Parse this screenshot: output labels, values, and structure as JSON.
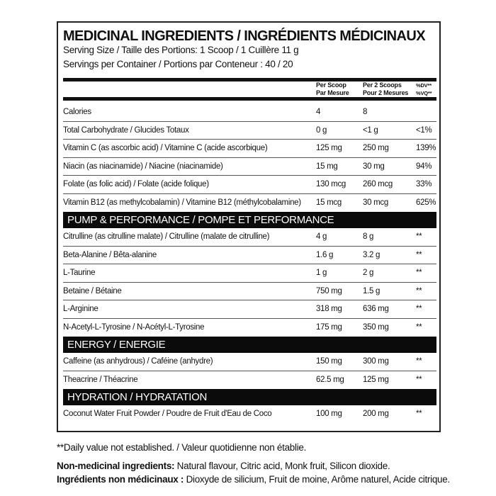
{
  "title": "MEDICINAL INGREDIENTS / INGRÉDIENTS MÉDICINAUX",
  "serving_size": "Serving Size / Taille des Portions: 1 Scoop / 1 Cuillère 11 g",
  "servings_per_container": "Servings per Container / Portions par Conteneur : 40 / 20",
  "columns": {
    "per_scoop": [
      "Per Scoop",
      "Par Mesure"
    ],
    "per_2_scoops": [
      "Per 2 Scoops",
      "Pour 2 Mesures"
    ],
    "dv": [
      "%DV**",
      "%VQ**"
    ]
  },
  "rows": [
    [
      "Calories",
      "4",
      "8",
      ""
    ],
    [
      "Total Carbohydrate / Glucides Totaux",
      "0 g",
      "<1 g",
      "<1%"
    ],
    [
      "Vitamin C (as ascorbic acid) / Vitamine C (acide ascorbique)",
      "125 mg",
      "250 mg",
      "139%"
    ],
    [
      "Niacin (as niacinamide) / Niacine (niacinamide)",
      "15 mg",
      "30 mg",
      "94%"
    ],
    [
      "Folate (as folic acid) / Folate (acide folique)",
      "130 mcg",
      "260 mcg",
      "33%"
    ],
    [
      "Vitamin B12 (as methylcobalamin) / Vitamine B12 (méthylcobalamine)",
      "15 mcg",
      "30 mcg",
      "625%"
    ]
  ],
  "sections": [
    {
      "title": "PUMP & PERFORMANCE / POMPE ET PERFORMANCE",
      "rows": [
        [
          "Citrulline (as citrulline malate) / Citrulline (malate de citrulline)",
          "4 g",
          "8 g",
          "**"
        ],
        [
          "Beta-Alanine / Bêta-alanine",
          "1.6 g",
          "3.2 g",
          "**"
        ],
        [
          "L-Taurine",
          "1 g",
          "2 g",
          "**"
        ],
        [
          "Betaine / Bétaine",
          "750 mg",
          "1.5 g",
          "**"
        ],
        [
          "L-Arginine",
          "318 mg",
          "636 mg",
          "**"
        ],
        [
          "N-Acetyl-L-Tyrosine / N-Acétyl-L-Tyrosine",
          "175 mg",
          "350 mg",
          "**"
        ]
      ]
    },
    {
      "title": "ENERGY / ENERGIE",
      "rows": [
        [
          "Caffeine (as anhydrous) / Caféine (anhydre)",
          "150 mg",
          "300 mg",
          "**"
        ],
        [
          "Theacrine / Théacrine",
          "62.5 mg",
          "125 mg",
          "**"
        ]
      ]
    },
    {
      "title": "HYDRATION / HYDRATATION",
      "rows": [
        [
          "Coconut Water Fruit Powder / Poudre de Fruit d'Eau de Coco",
          "100 mg",
          "200 mg",
          "**"
        ]
      ]
    }
  ],
  "footnote": "**Daily value not established. / Valeur quotidienne non établie.",
  "non_medicinal": {
    "label": "Non-medicinal ingredients:",
    "text": " Natural flavour, Citric acid, Monk fruit, Silicon dioxide."
  },
  "non_medicinal_fr": {
    "label": "Ingrédients non médicinaux :",
    "text": " Dioxyde de silicium, Fruit de moine, Arôme naturel, Acide citrique."
  }
}
